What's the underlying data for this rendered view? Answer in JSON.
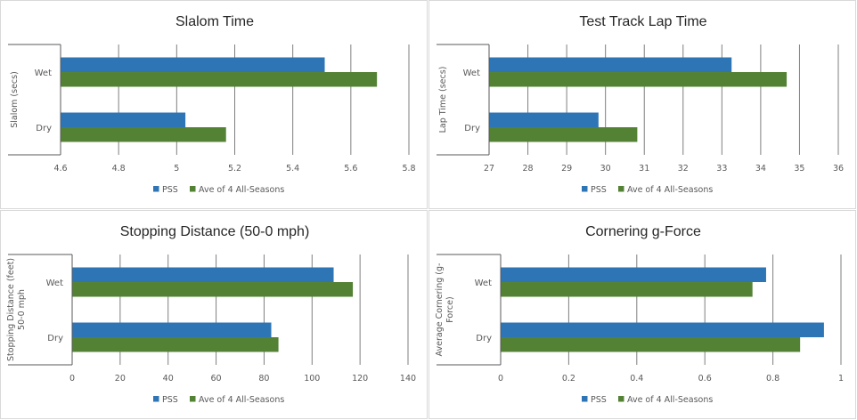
{
  "legend": {
    "series": [
      {
        "name": "PSS",
        "color": "#2e75b6"
      },
      {
        "name": "Ave of 4 All-Seasons",
        "color": "#548235"
      }
    ]
  },
  "chart_data": [
    {
      "type": "bar",
      "orientation": "horizontal",
      "title": "Slalom Time",
      "xlabel": "",
      "ylabel": [
        "Slalom (secs)"
      ],
      "categories": [
        "Wet",
        "Dry"
      ],
      "series": [
        {
          "name": "PSS",
          "values": [
            5.51,
            5.03
          ]
        },
        {
          "name": "Ave of 4 All-Seasons",
          "values": [
            5.69,
            5.17
          ]
        }
      ],
      "xlim": [
        4.6,
        5.8
      ],
      "xticks": [
        "4.6",
        "4.8",
        "5",
        "5.2",
        "5.4",
        "5.6",
        "5.8"
      ],
      "grid": true,
      "legend_position": "bottom"
    },
    {
      "type": "bar",
      "orientation": "horizontal",
      "title": "Test Track Lap Time",
      "xlabel": "",
      "ylabel": [
        "Lap Time (secs)"
      ],
      "categories": [
        "Wet",
        "Dry"
      ],
      "series": [
        {
          "name": "PSS",
          "values": [
            33.25,
            29.82
          ]
        },
        {
          "name": "Ave of 4 All-Seasons",
          "values": [
            34.67,
            30.82
          ]
        }
      ],
      "xlim": [
        27,
        36
      ],
      "xticks": [
        "27",
        "28",
        "29",
        "30",
        "31",
        "32",
        "33",
        "34",
        "35",
        "36"
      ],
      "grid": true,
      "legend_position": "bottom"
    },
    {
      "type": "bar",
      "orientation": "horizontal",
      "title": "Stopping Distance (50-0 mph)",
      "xlabel": "",
      "ylabel": [
        "Stopping Distance (feet)",
        "50-0 mph"
      ],
      "categories": [
        "Wet",
        "Dry"
      ],
      "series": [
        {
          "name": "PSS",
          "values": [
            109,
            83
          ]
        },
        {
          "name": "Ave of 4 All-Seasons",
          "values": [
            117,
            86
          ]
        }
      ],
      "xlim": [
        0,
        140
      ],
      "xticks": [
        "0",
        "20",
        "40",
        "60",
        "80",
        "100",
        "120",
        "140"
      ],
      "grid": true,
      "legend_position": "bottom"
    },
    {
      "type": "bar",
      "orientation": "horizontal",
      "title": "Cornering g-Force",
      "xlabel": "",
      "ylabel": [
        "Average Cornering (g-",
        "Force)"
      ],
      "categories": [
        "Wet",
        "Dry"
      ],
      "series": [
        {
          "name": "PSS",
          "values": [
            0.78,
            0.95
          ]
        },
        {
          "name": "Ave of 4 All-Seasons",
          "values": [
            0.74,
            0.88
          ]
        }
      ],
      "xlim": [
        0,
        1
      ],
      "xticks": [
        "0",
        "0.2",
        "0.4",
        "0.6",
        "0.8",
        "1"
      ],
      "grid": true,
      "legend_position": "bottom"
    }
  ]
}
